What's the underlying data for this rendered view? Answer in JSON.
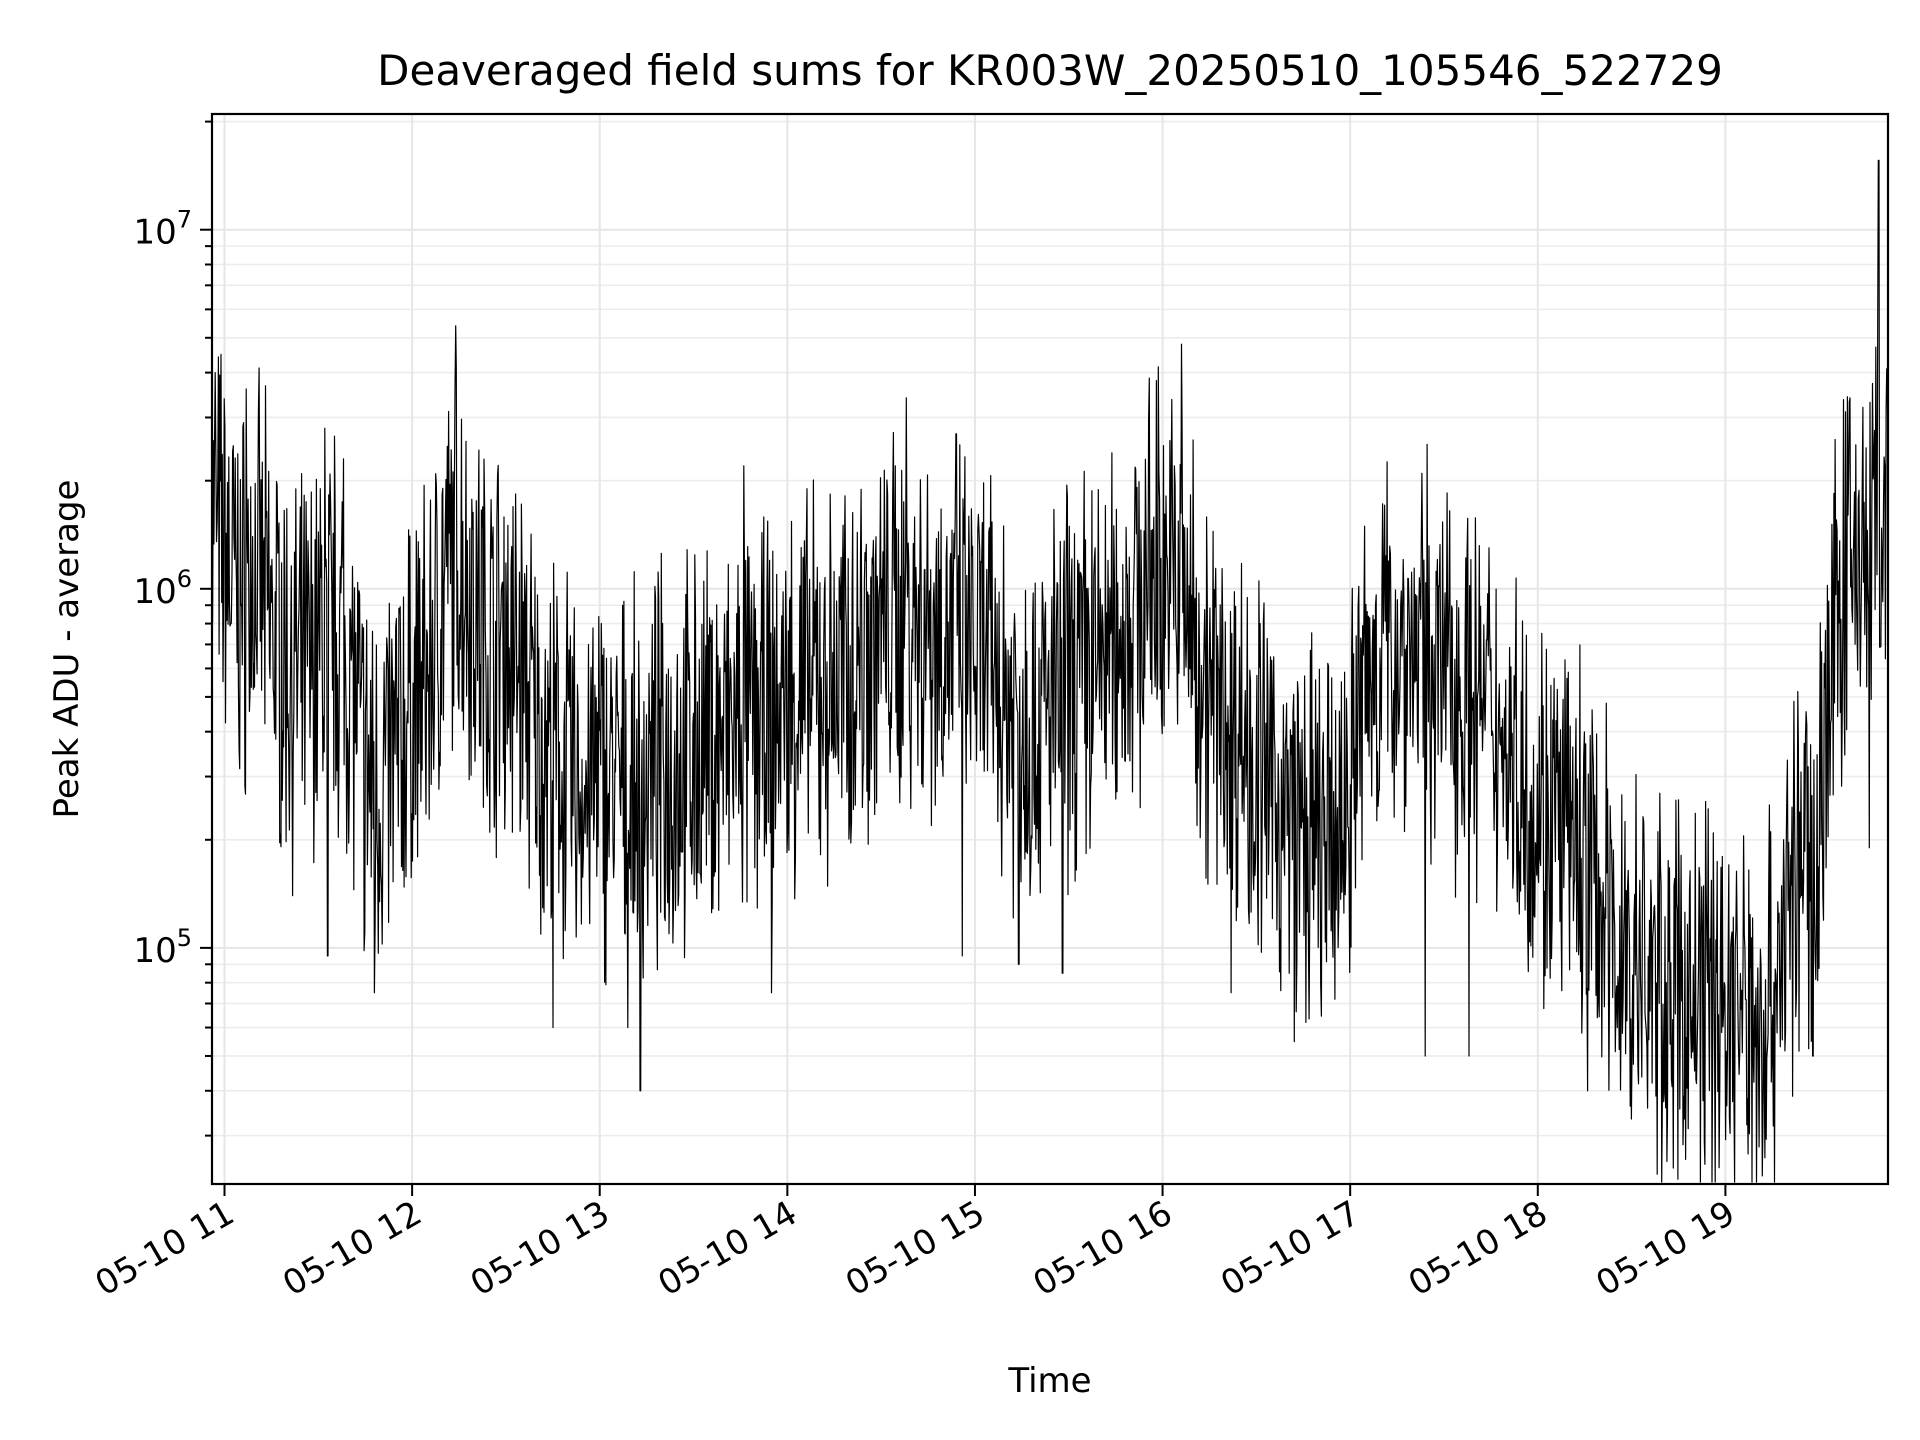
{
  "chart_data": {
    "type": "line",
    "title": "Deaveraged field sums for KR003W_20250510_105546_522729",
    "xlabel": "Time",
    "ylabel": "Peak ADU - average",
    "x_scale": "time",
    "y_scale": "log",
    "xlim": [
      "2025-05-10 10:56",
      "2025-05-10 19:52"
    ],
    "ylim": [
      22000,
      21000000
    ],
    "grid": true,
    "x_ticks": [
      {
        "t": "2025-05-10 11:00",
        "label": "05-10 11"
      },
      {
        "t": "2025-05-10 12:00",
        "label": "05-10 12"
      },
      {
        "t": "2025-05-10 13:00",
        "label": "05-10 13"
      },
      {
        "t": "2025-05-10 14:00",
        "label": "05-10 14"
      },
      {
        "t": "2025-05-10 15:00",
        "label": "05-10 15"
      },
      {
        "t": "2025-05-10 16:00",
        "label": "05-10 16"
      },
      {
        "t": "2025-05-10 17:00",
        "label": "05-10 17"
      },
      {
        "t": "2025-05-10 18:00",
        "label": "05-10 18"
      },
      {
        "t": "2025-05-10 19:00",
        "label": "05-10 19"
      }
    ],
    "y_ticks": [
      {
        "value": 100000,
        "base": "10",
        "exp": "5"
      },
      {
        "value": 1000000,
        "base": "10",
        "exp": "6"
      },
      {
        "value": 10000000,
        "base": "10",
        "exp": "7"
      }
    ],
    "series": [
      {
        "color": "#000000",
        "points": [
          [
            "2025-05-10 10:56",
            1600000
          ],
          [
            "2025-05-10 11:00",
            1300000
          ],
          [
            "2025-05-10 11:05",
            900000
          ],
          [
            "2025-05-10 11:10",
            1100000
          ],
          [
            "2025-05-10 11:15",
            800000
          ],
          [
            "2025-05-10 11:20",
            600000
          ],
          [
            "2025-05-10 11:25",
            550000
          ],
          [
            "2025-05-10 11:30",
            700000
          ],
          [
            "2025-05-10 11:35",
            800000
          ],
          [
            "2025-05-10 11:40",
            600000
          ],
          [
            "2025-05-10 11:45",
            300000
          ],
          [
            "2025-05-10 11:50",
            280000
          ],
          [
            "2025-05-10 11:55",
            350000
          ],
          [
            "2025-05-10 12:00",
            480000
          ],
          [
            "2025-05-10 12:05",
            550000
          ],
          [
            "2025-05-10 12:10",
            1000000
          ],
          [
            "2025-05-10 12:15",
            1300000
          ],
          [
            "2025-05-10 12:20",
            900000
          ],
          [
            "2025-05-10 12:25",
            700000
          ],
          [
            "2025-05-10 12:30",
            750000
          ],
          [
            "2025-05-10 12:35",
            600000
          ],
          [
            "2025-05-10 12:40",
            380000
          ],
          [
            "2025-05-10 12:45",
            330000
          ],
          [
            "2025-05-10 12:50",
            300000
          ],
          [
            "2025-05-10 12:55",
            270000
          ],
          [
            "2025-05-10 13:00",
            300000
          ],
          [
            "2025-05-10 13:05",
            280000
          ],
          [
            "2025-05-10 13:10",
            260000
          ],
          [
            "2025-05-10 13:15",
            290000
          ],
          [
            "2025-05-10 13:20",
            320000
          ],
          [
            "2025-05-10 13:25",
            330000
          ],
          [
            "2025-05-10 13:30",
            350000
          ],
          [
            "2025-05-10 13:35",
            360000
          ],
          [
            "2025-05-10 13:40",
            380000
          ],
          [
            "2025-05-10 13:45",
            400000
          ],
          [
            "2025-05-10 13:50",
            420000
          ],
          [
            "2025-05-10 13:55",
            450000
          ],
          [
            "2025-05-10 14:00",
            480000
          ],
          [
            "2025-05-10 14:05",
            520000
          ],
          [
            "2025-05-10 14:10",
            520000
          ],
          [
            "2025-05-10 14:15",
            540000
          ],
          [
            "2025-05-10 14:20",
            600000
          ],
          [
            "2025-05-10 14:25",
            700000
          ],
          [
            "2025-05-10 14:30",
            750000
          ],
          [
            "2025-05-10 14:35",
            800000
          ],
          [
            "2025-05-10 14:40",
            850000
          ],
          [
            "2025-05-10 14:45",
            800000
          ],
          [
            "2025-05-10 14:50",
            750000
          ],
          [
            "2025-05-10 14:55",
            700000
          ],
          [
            "2025-05-10 15:00",
            650000
          ],
          [
            "2025-05-10 15:05",
            600000
          ],
          [
            "2025-05-10 15:10",
            500000
          ],
          [
            "2025-05-10 15:15",
            450000
          ],
          [
            "2025-05-10 15:20",
            420000
          ],
          [
            "2025-05-10 15:25",
            480000
          ],
          [
            "2025-05-10 15:30",
            550000
          ],
          [
            "2025-05-10 15:35",
            600000
          ],
          [
            "2025-05-10 15:40",
            650000
          ],
          [
            "2025-05-10 15:45",
            700000
          ],
          [
            "2025-05-10 15:50",
            850000
          ],
          [
            "2025-05-10 15:55",
            1000000
          ],
          [
            "2025-05-10 16:00",
            1200000
          ],
          [
            "2025-05-10 16:05",
            1000000
          ],
          [
            "2025-05-10 16:10",
            750000
          ],
          [
            "2025-05-10 16:15",
            500000
          ],
          [
            "2025-05-10 16:20",
            450000
          ],
          [
            "2025-05-10 16:25",
            400000
          ],
          [
            "2025-05-10 16:30",
            320000
          ],
          [
            "2025-05-10 16:35",
            260000
          ],
          [
            "2025-05-10 16:40",
            220000
          ],
          [
            "2025-05-10 16:45",
            200000
          ],
          [
            "2025-05-10 16:50",
            190000
          ],
          [
            "2025-05-10 16:55",
            180000
          ],
          [
            "2025-05-10 17:00",
            300000
          ],
          [
            "2025-05-10 17:05",
            550000
          ],
          [
            "2025-05-10 17:10",
            650000
          ],
          [
            "2025-05-10 17:15",
            700000
          ],
          [
            "2025-05-10 17:20",
            680000
          ],
          [
            "2025-05-10 17:25",
            650000
          ],
          [
            "2025-05-10 17:30",
            600000
          ],
          [
            "2025-05-10 17:35",
            550000
          ],
          [
            "2025-05-10 17:40",
            500000
          ],
          [
            "2025-05-10 17:45",
            420000
          ],
          [
            "2025-05-10 17:50",
            380000
          ],
          [
            "2025-05-10 17:55",
            300000
          ],
          [
            "2025-05-10 18:00",
            250000
          ],
          [
            "2025-05-10 18:05",
            220000
          ],
          [
            "2025-05-10 18:10",
            200000
          ],
          [
            "2025-05-10 18:15",
            170000
          ],
          [
            "2025-05-10 18:20",
            140000
          ],
          [
            "2025-05-10 18:25",
            100000
          ],
          [
            "2025-05-10 18:30",
            90000
          ],
          [
            "2025-05-10 18:35",
            80000
          ],
          [
            "2025-05-10 18:40",
            75000
          ],
          [
            "2025-05-10 18:45",
            70000
          ],
          [
            "2025-05-10 18:50",
            72000
          ],
          [
            "2025-05-10 18:55",
            80000
          ],
          [
            "2025-05-10 19:00",
            70000
          ],
          [
            "2025-05-10 19:05",
            65000
          ],
          [
            "2025-05-10 19:10",
            60000
          ],
          [
            "2025-05-10 19:15",
            75000
          ],
          [
            "2025-05-10 19:20",
            130000
          ],
          [
            "2025-05-10 19:25",
            170000
          ],
          [
            "2025-05-10 19:30",
            250000
          ],
          [
            "2025-05-10 19:35",
            750000
          ],
          [
            "2025-05-10 19:40",
            1300000
          ],
          [
            "2025-05-10 19:45",
            1100000
          ],
          [
            "2025-05-10 19:48",
            1600000
          ],
          [
            "2025-05-10 19:52",
            1500000
          ]
        ],
        "spikes": [
          [
            "2025-05-10 10:57",
            4000000
          ],
          [
            "2025-05-10 11:07",
            3600000
          ],
          [
            "2025-05-10 11:32",
            2800000
          ],
          [
            "2025-05-10 11:38",
            2300000
          ],
          [
            "2025-05-10 11:33",
            95000
          ],
          [
            "2025-05-10 11:48",
            75000
          ],
          [
            "2025-05-10 12:14",
            5400000
          ],
          [
            "2025-05-10 12:32",
            210000
          ],
          [
            "2025-05-10 12:45",
            60000
          ],
          [
            "2025-05-10 13:13",
            40000
          ],
          [
            "2025-05-10 13:09",
            60000
          ],
          [
            "2025-05-10 13:46",
            2200000
          ],
          [
            "2025-05-10 13:55",
            75000
          ],
          [
            "2025-05-10 14:38",
            3400000
          ],
          [
            "2025-05-10 14:54",
            2700000
          ],
          [
            "2025-05-10 14:56",
            95000
          ],
          [
            "2025-05-10 15:14",
            90000
          ],
          [
            "2025-05-10 15:28",
            85000
          ],
          [
            "2025-05-10 16:06",
            4800000
          ],
          [
            "2025-05-10 15:58",
            3800000
          ],
          [
            "2025-05-10 16:22",
            75000
          ],
          [
            "2025-05-10 17:24",
            50000
          ],
          [
            "2025-05-10 17:38",
            50000
          ],
          [
            "2025-05-10 18:16",
            40000
          ],
          [
            "2025-05-10 19:12",
            32000
          ],
          [
            "2025-05-10 19:07",
            38000
          ],
          [
            "2025-05-10 19:28",
            50000
          ],
          [
            "2025-05-10 19:44",
            3200000
          ],
          [
            "2025-05-10 19:49",
            15600000
          ],
          [
            "2025-05-10 19:46",
            190000
          ]
        ]
      }
    ]
  }
}
